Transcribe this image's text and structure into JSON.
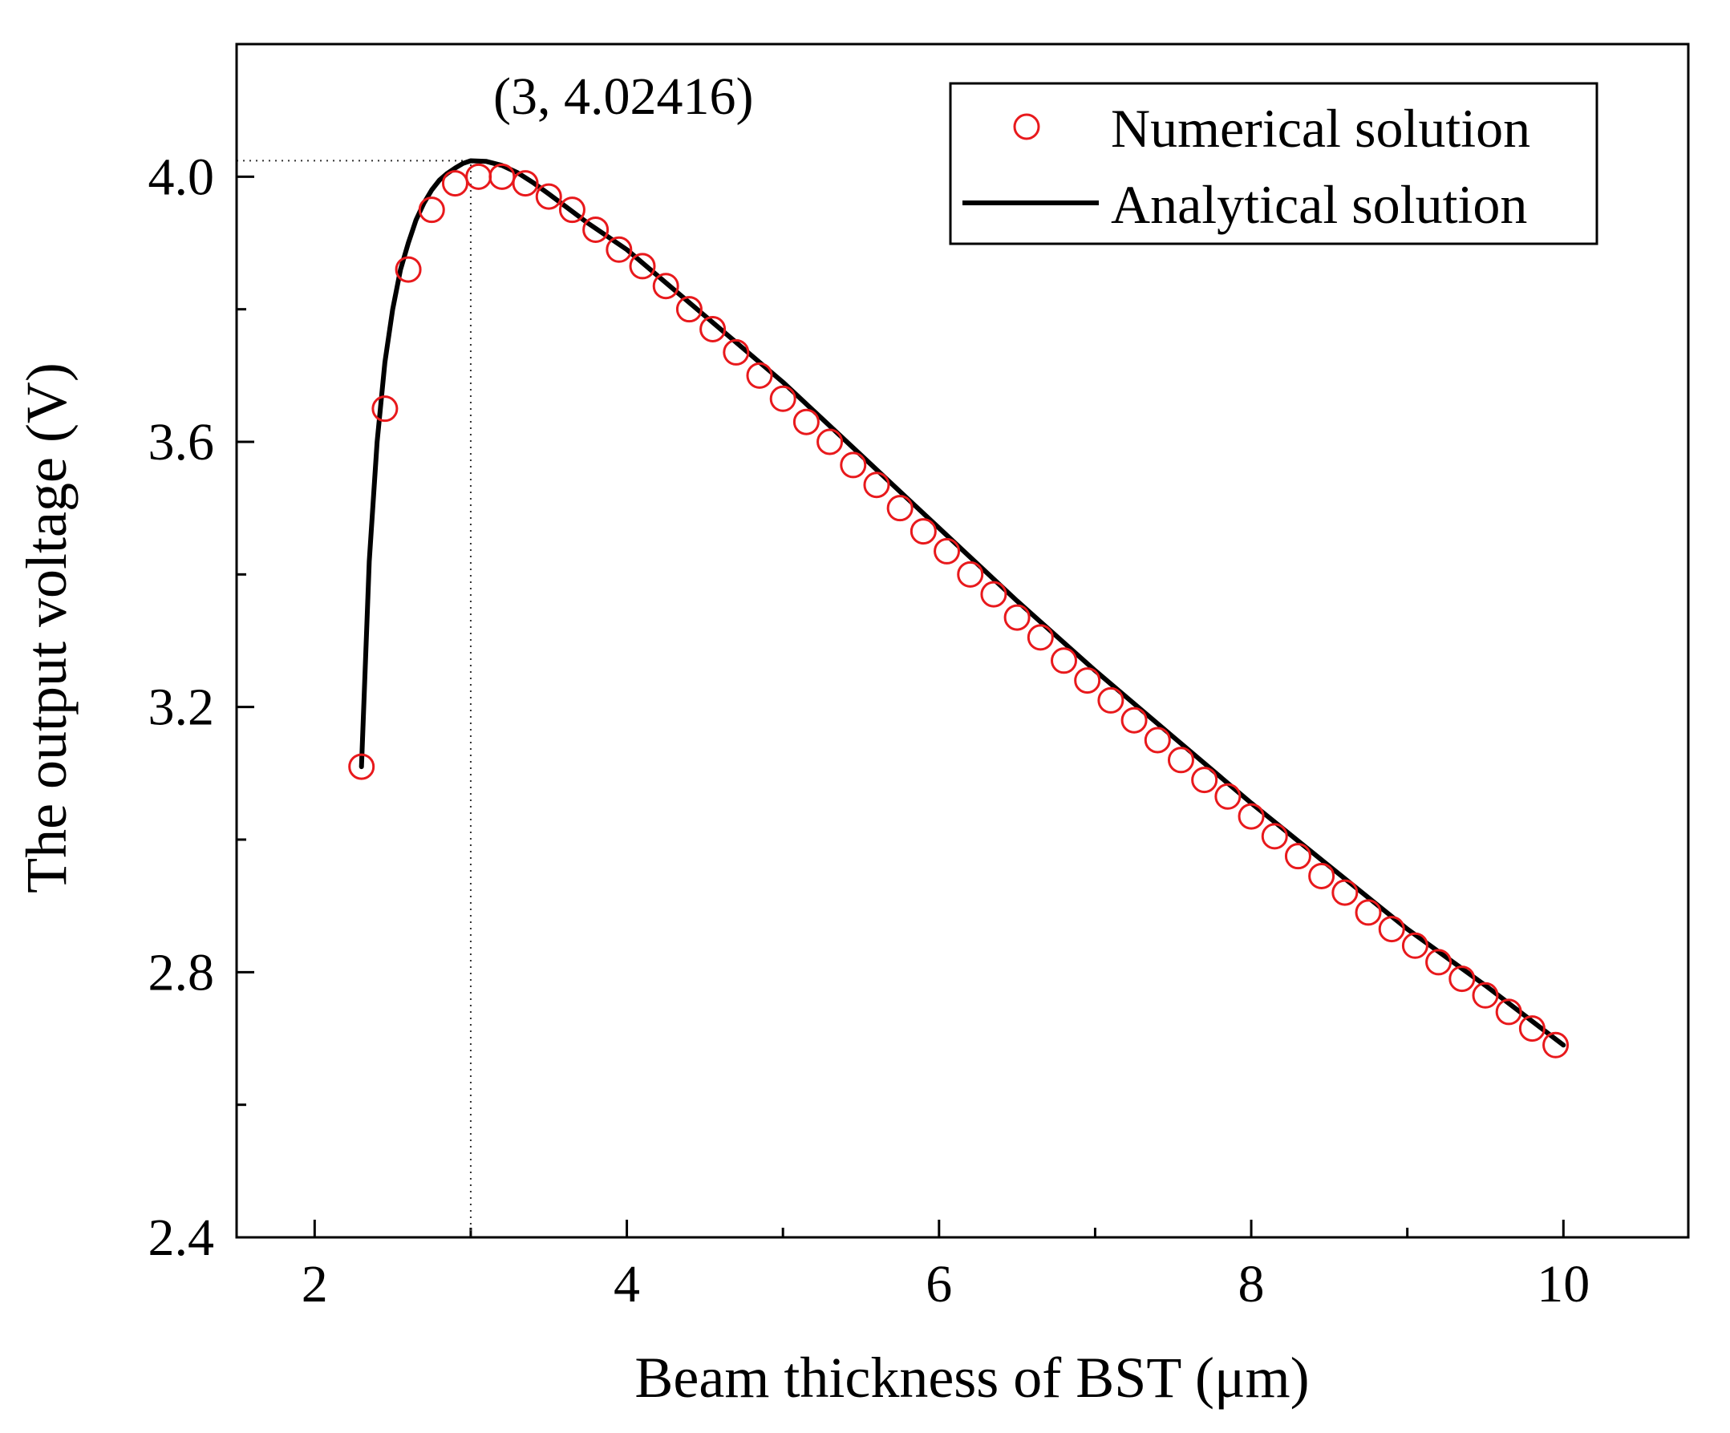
{
  "chart_data": {
    "type": "line",
    "title": "",
    "xlabel": "Beam thickness of BST (μm)",
    "ylabel": "The output voltage (V)",
    "xlim": [
      1.5,
      10.8
    ],
    "ylim": [
      2.4,
      4.2
    ],
    "x_ticks": [
      2,
      4,
      6,
      8,
      10
    ],
    "x_tick_labels": [
      "2",
      "4",
      "6",
      "8",
      "10"
    ],
    "x_minor_ticks": [
      3,
      5,
      7,
      9
    ],
    "y_ticks": [
      2.4,
      2.8,
      3.2,
      3.6,
      4.0
    ],
    "y_tick_labels": [
      "2.4",
      "2.8",
      "3.2",
      "3.6",
      "4.0"
    ],
    "y_minor_ticks": [
      2.6,
      3.0,
      3.4,
      3.8
    ],
    "grid": false,
    "legend_position": "top-right",
    "series": [
      {
        "name": "Numerical solution",
        "style": "markers-open-circle",
        "color": "#e8191c",
        "x": [
          2.3,
          2.45,
          2.6,
          2.75,
          2.9,
          3.05,
          3.2,
          3.35,
          3.5,
          3.65,
          3.8,
          3.95,
          4.1,
          4.25,
          4.4,
          4.55,
          4.7,
          4.85,
          5.0,
          5.15,
          5.3,
          5.45,
          5.6,
          5.75,
          5.9,
          6.05,
          6.2,
          6.35,
          6.5,
          6.65,
          6.8,
          6.95,
          7.1,
          7.25,
          7.4,
          7.55,
          7.7,
          7.85,
          8.0,
          8.15,
          8.3,
          8.45,
          8.6,
          8.75,
          8.9,
          9.05,
          9.2,
          9.35,
          9.5,
          9.65,
          9.8,
          9.95
        ],
        "y": [
          3.11,
          3.65,
          3.86,
          3.95,
          3.99,
          4.0,
          4.0,
          3.99,
          3.97,
          3.95,
          3.92,
          3.89,
          3.865,
          3.835,
          3.8,
          3.77,
          3.735,
          3.7,
          3.665,
          3.63,
          3.6,
          3.565,
          3.535,
          3.5,
          3.465,
          3.435,
          3.4,
          3.37,
          3.335,
          3.305,
          3.27,
          3.24,
          3.21,
          3.18,
          3.15,
          3.12,
          3.09,
          3.065,
          3.035,
          3.005,
          2.975,
          2.945,
          2.92,
          2.89,
          2.865,
          2.84,
          2.815,
          2.79,
          2.765,
          2.74,
          2.715,
          2.69
        ]
      },
      {
        "name": "Analytical solution",
        "style": "solid-line",
        "color": "#000000",
        "x": [
          2.3,
          2.35,
          2.4,
          2.45,
          2.5,
          2.55,
          2.6,
          2.65,
          2.7,
          2.75,
          2.8,
          2.85,
          2.9,
          2.95,
          3.0,
          3.1,
          3.2,
          3.3,
          3.4,
          3.5,
          3.75,
          4.0,
          4.5,
          5.0,
          5.5,
          6.0,
          6.5,
          7.0,
          7.5,
          8.0,
          8.5,
          9.0,
          9.5,
          10.0
        ],
        "y": [
          3.11,
          3.42,
          3.6,
          3.72,
          3.8,
          3.86,
          3.9,
          3.935,
          3.96,
          3.98,
          3.995,
          4.005,
          4.013,
          4.02,
          4.024,
          4.023,
          4.017,
          4.006,
          3.991,
          3.974,
          3.93,
          3.89,
          3.79,
          3.69,
          3.58,
          3.47,
          3.36,
          3.255,
          3.155,
          3.055,
          2.96,
          2.865,
          2.78,
          2.69
        ]
      }
    ],
    "annotations": [
      {
        "label": "(3, 4.02416)",
        "x": 3,
        "y": 4.02416
      }
    ]
  }
}
